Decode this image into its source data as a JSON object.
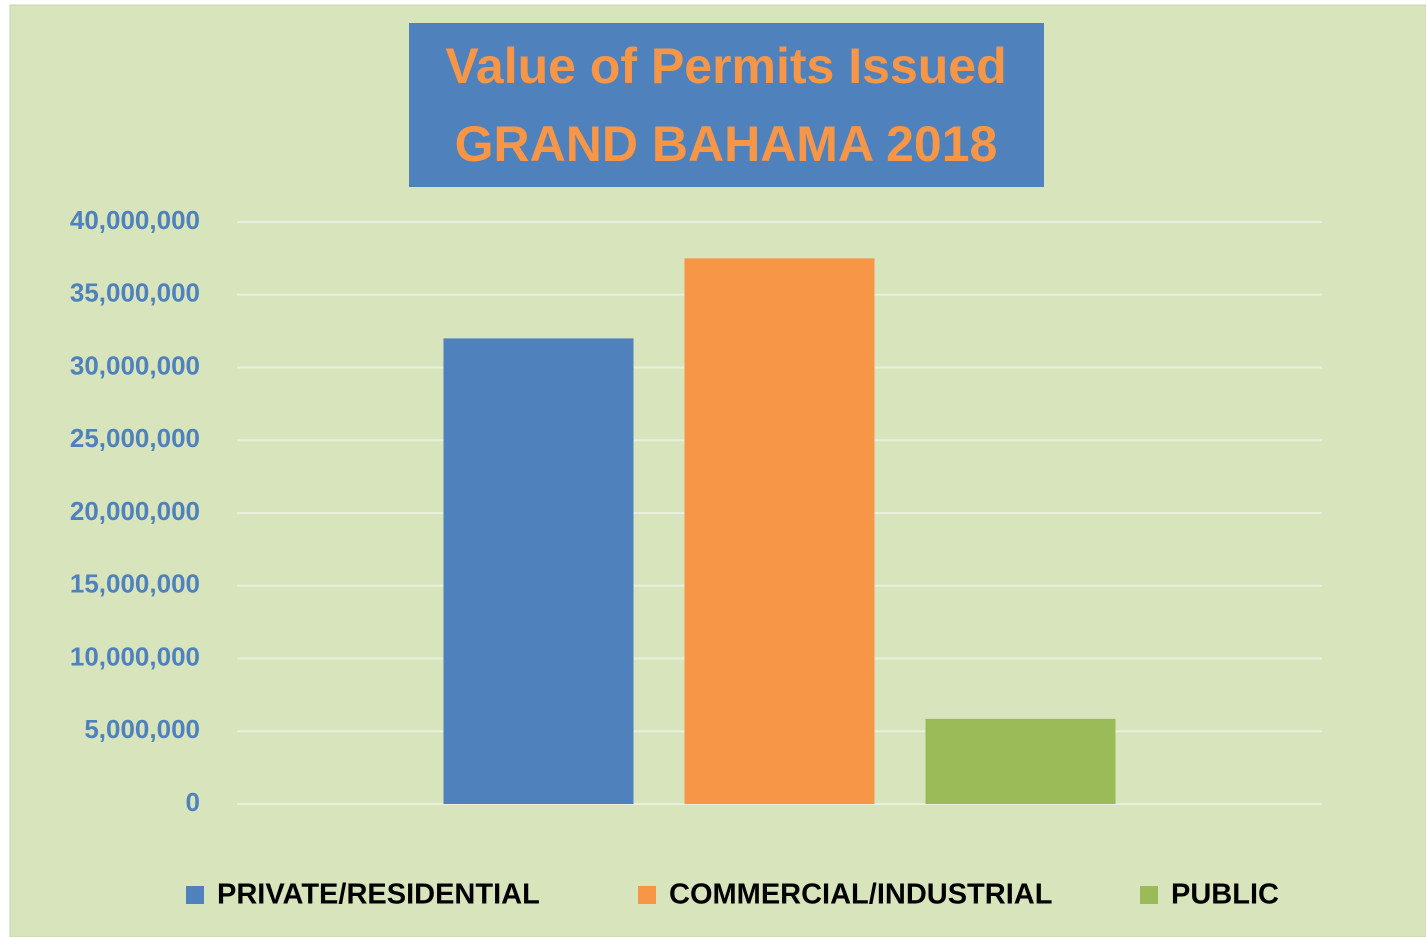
{
  "chart_data": {
    "type": "bar",
    "title": [
      "Value of Permits Issued",
      "GRAND BAHAMA 2018"
    ],
    "categories": [
      null
    ],
    "series": [
      {
        "name": "PRIVATE/RESIDENTIAL",
        "color": "#4f81bd",
        "values": [
          32000000
        ]
      },
      {
        "name": "COMMERCIAL/INDUSTRIAL",
        "color": "#f79646",
        "values": [
          37500000
        ]
      },
      {
        "name": "PUBLIC",
        "color": "#9bbb59",
        "values": [
          5850000
        ]
      }
    ],
    "ylim": [
      0,
      40000000
    ],
    "yticks": [
      0,
      {
        "value": 5000000,
        "label": "5,000,000"
      },
      {
        "value": 10000000,
        "label": "10,000,000"
      },
      {
        "value": 15000000,
        "label": "15,000,000"
      },
      {
        "value": 20000000,
        "label": "20,000,000"
      },
      {
        "value": 25000000,
        "label": "25,000,000"
      },
      {
        "value": 30000000,
        "label": "30,000,000"
      },
      {
        "value": 35000000,
        "label": "35,000,000"
      },
      {
        "value": 40000000,
        "label": "40,000,000"
      }
    ],
    "grid": true,
    "legend": "bottom"
  }
}
